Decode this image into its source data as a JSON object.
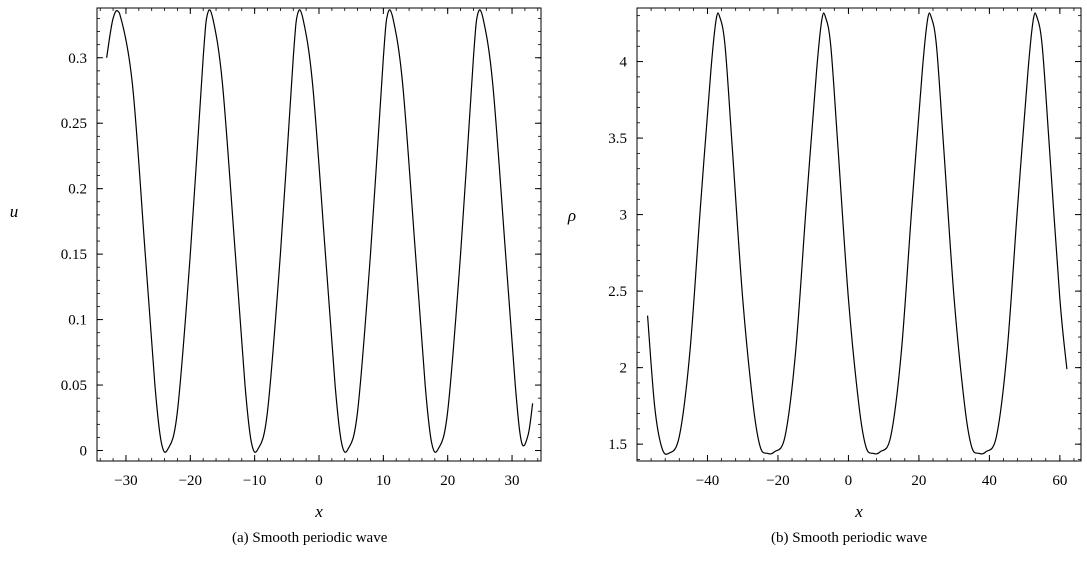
{
  "chart_data": [
    {
      "type": "line",
      "xlabel": "x",
      "ylabel": "u",
      "caption": "(a)  Smooth periodic wave",
      "xlim": [
        -34.5,
        34.5
      ],
      "ylim": [
        -0.008,
        0.338
      ],
      "x_ticks": [
        -30,
        -20,
        -10,
        0,
        10,
        20,
        30
      ],
      "x_tick_labels": [
        "−30",
        "−20",
        "−10",
        "0",
        "10",
        "20",
        "30"
      ],
      "y_ticks": [
        0,
        0.05,
        0.1,
        0.15,
        0.2,
        0.25,
        0.3
      ],
      "y_tick_labels": [
        "0",
        "0.05",
        "0.1",
        "0.15",
        "0.2",
        "0.25",
        "0.3"
      ],
      "grid": false,
      "series": [
        {
          "x": [
            -33.0,
            -32.0,
            -31.0,
            -29.0,
            -27.0,
            -25.5,
            -24.5,
            -23.5,
            -22.0,
            -20.0,
            -18.0,
            -17.3,
            -16.5,
            -15.0,
            -13.0,
            -11.5,
            -10.5,
            -9.5,
            -8.0,
            -6.0,
            -4.0,
            -3.3,
            -2.5,
            -1.0,
            1.0,
            2.5,
            3.5,
            4.5,
            6.0,
            8.0,
            10.0,
            10.7,
            11.5,
            13.0,
            15.0,
            16.5,
            17.5,
            18.5,
            20.0,
            22.0,
            24.0,
            24.7,
            25.5,
            27.0,
            29.0,
            30.5,
            31.5,
            32.5,
            33.2
          ],
          "y": [
            0.3,
            0.33,
            0.334,
            0.28,
            0.15,
            0.05,
            0.006,
            0.001,
            0.03,
            0.15,
            0.3,
            0.334,
            0.33,
            0.28,
            0.15,
            0.05,
            0.006,
            0.001,
            0.03,
            0.15,
            0.3,
            0.334,
            0.33,
            0.28,
            0.15,
            0.05,
            0.006,
            0.001,
            0.03,
            0.15,
            0.3,
            0.334,
            0.33,
            0.28,
            0.15,
            0.05,
            0.006,
            0.001,
            0.03,
            0.15,
            0.3,
            0.334,
            0.33,
            0.28,
            0.15,
            0.05,
            0.006,
            0.012,
            0.036
          ]
        }
      ]
    },
    {
      "type": "line",
      "xlabel": "x",
      "ylabel": "ρ",
      "caption": "(b)  Smooth periodic wave",
      "xlim": [
        -60,
        66
      ],
      "ylim": [
        1.39,
        4.35
      ],
      "x_ticks": [
        -40,
        -20,
        0,
        20,
        40,
        60
      ],
      "x_tick_labels": [
        "−40",
        "−20",
        "0",
        "20",
        "40",
        "60"
      ],
      "y_ticks": [
        1.5,
        2,
        2.5,
        3,
        3.5,
        4
      ],
      "y_tick_labels": [
        "1.5",
        "2",
        "2.5",
        "3",
        "3.5",
        "4"
      ],
      "grid": false,
      "series": [
        {
          "x": [
            -57.0,
            -55.0,
            -53.0,
            -51.0,
            -48.0,
            -45.0,
            -42.0,
            -39.0,
            -37.5,
            -36.5,
            -35.0,
            -33.0,
            -30.0,
            -27.0,
            -25.0,
            -23.0,
            -21.0,
            -18.0,
            -15.0,
            -12.0,
            -9.0,
            -7.5,
            -6.5,
            -5.0,
            -3.0,
            0.0,
            3.0,
            5.0,
            7.0,
            9.0,
            12.0,
            15.0,
            18.0,
            21.0,
            22.5,
            23.5,
            25.0,
            27.0,
            30.0,
            33.0,
            35.0,
            37.0,
            39.0,
            42.0,
            45.0,
            48.0,
            51.0,
            52.5,
            53.5,
            55.0,
            57.0,
            60.0,
            62.0
          ],
          "y": [
            2.34,
            1.75,
            1.48,
            1.44,
            1.55,
            2.1,
            3.05,
            3.95,
            4.28,
            4.29,
            4.1,
            3.45,
            2.45,
            1.75,
            1.48,
            1.44,
            1.45,
            1.55,
            2.1,
            3.05,
            3.95,
            4.28,
            4.29,
            4.1,
            3.45,
            2.45,
            1.75,
            1.48,
            1.44,
            1.45,
            1.55,
            2.1,
            3.05,
            3.95,
            4.28,
            4.29,
            4.1,
            3.45,
            2.45,
            1.75,
            1.48,
            1.44,
            1.45,
            1.55,
            2.1,
            3.05,
            3.95,
            4.28,
            4.29,
            4.1,
            3.45,
            2.45,
            1.99
          ]
        }
      ]
    }
  ]
}
